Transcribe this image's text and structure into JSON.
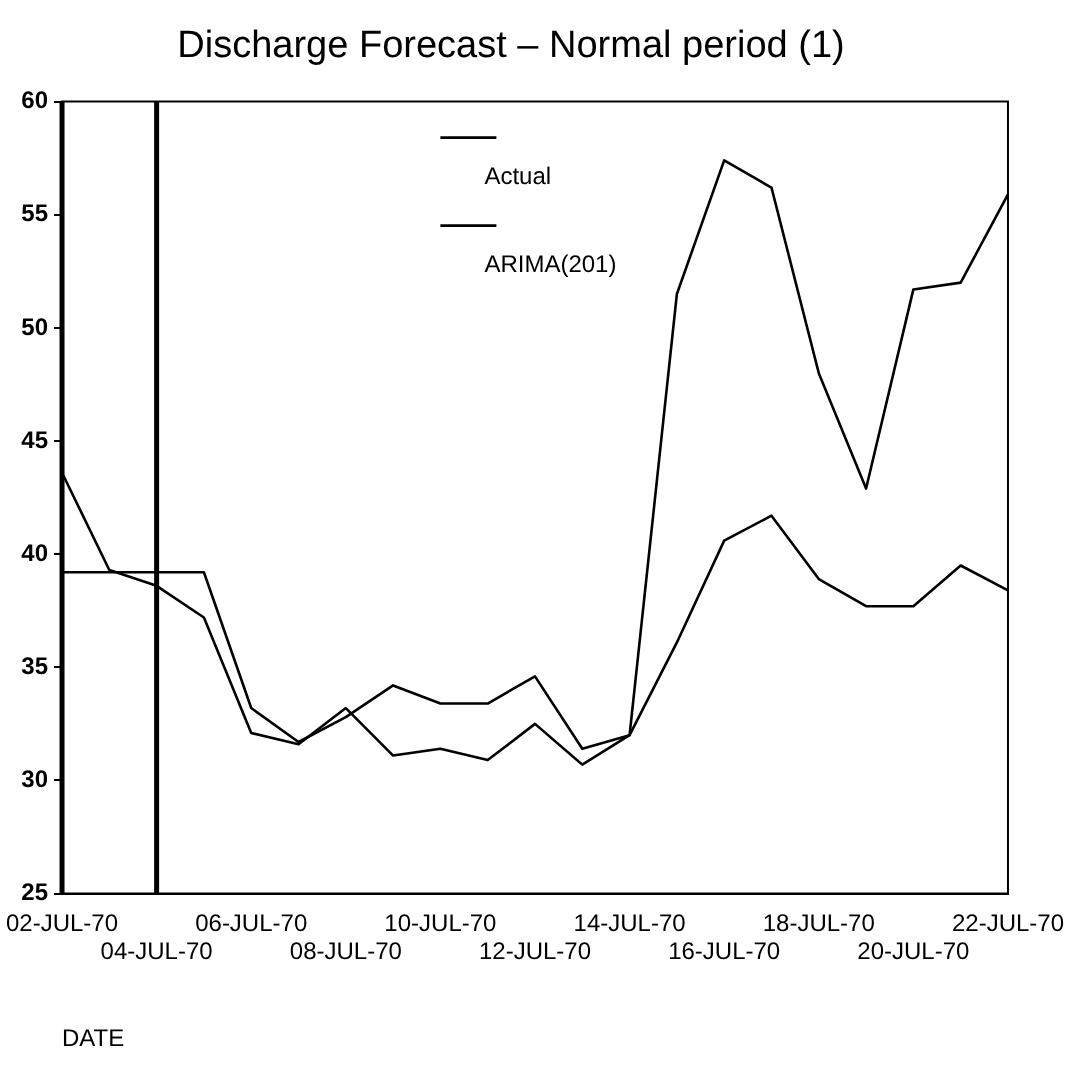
{
  "chart_data": {
    "type": "line",
    "title": "Discharge Forecast – Normal period (1)",
    "xlabel": "DATE",
    "categories": [
      "02-JUL-70",
      null,
      "04-JUL-70",
      null,
      "06-JUL-70",
      null,
      "08-JUL-70",
      null,
      "10-JUL-70",
      null,
      "12-JUL-70",
      null,
      "14-JUL-70",
      null,
      "16-JUL-70",
      null,
      "18-JUL-70",
      null,
      "20-JUL-70",
      null,
      "22-JUL-70"
    ],
    "series": [
      {
        "name": "Actual",
        "color": "#000000",
        "values": [
          39.2,
          39.2,
          39.2,
          39.2,
          33.2,
          31.7,
          32.8,
          34.2,
          33.4,
          33.4,
          34.6,
          31.4,
          32.0,
          51.5,
          57.4,
          56.2,
          48.0,
          42.9,
          51.7,
          52.0,
          55.9
        ]
      },
      {
        "name": "ARIMA(201)",
        "color": "#000000",
        "values": [
          43.6,
          39.3,
          38.6,
          37.2,
          32.1,
          31.6,
          33.2,
          31.1,
          31.4,
          30.9,
          32.5,
          30.7,
          32.0,
          36.1,
          40.6,
          41.7,
          38.9,
          37.7,
          37.7,
          39.5,
          38.4
        ]
      }
    ],
    "ylim": [
      25,
      60
    ],
    "yticks": [
      25,
      30,
      35,
      40,
      45,
      50,
      55,
      60
    ],
    "ref_lines": [
      {
        "axis": "x",
        "value": "04-JUL-70",
        "color": "#000000"
      }
    ],
    "grid": false,
    "legend": "top",
    "marker": "none",
    "line_style": "solid"
  }
}
